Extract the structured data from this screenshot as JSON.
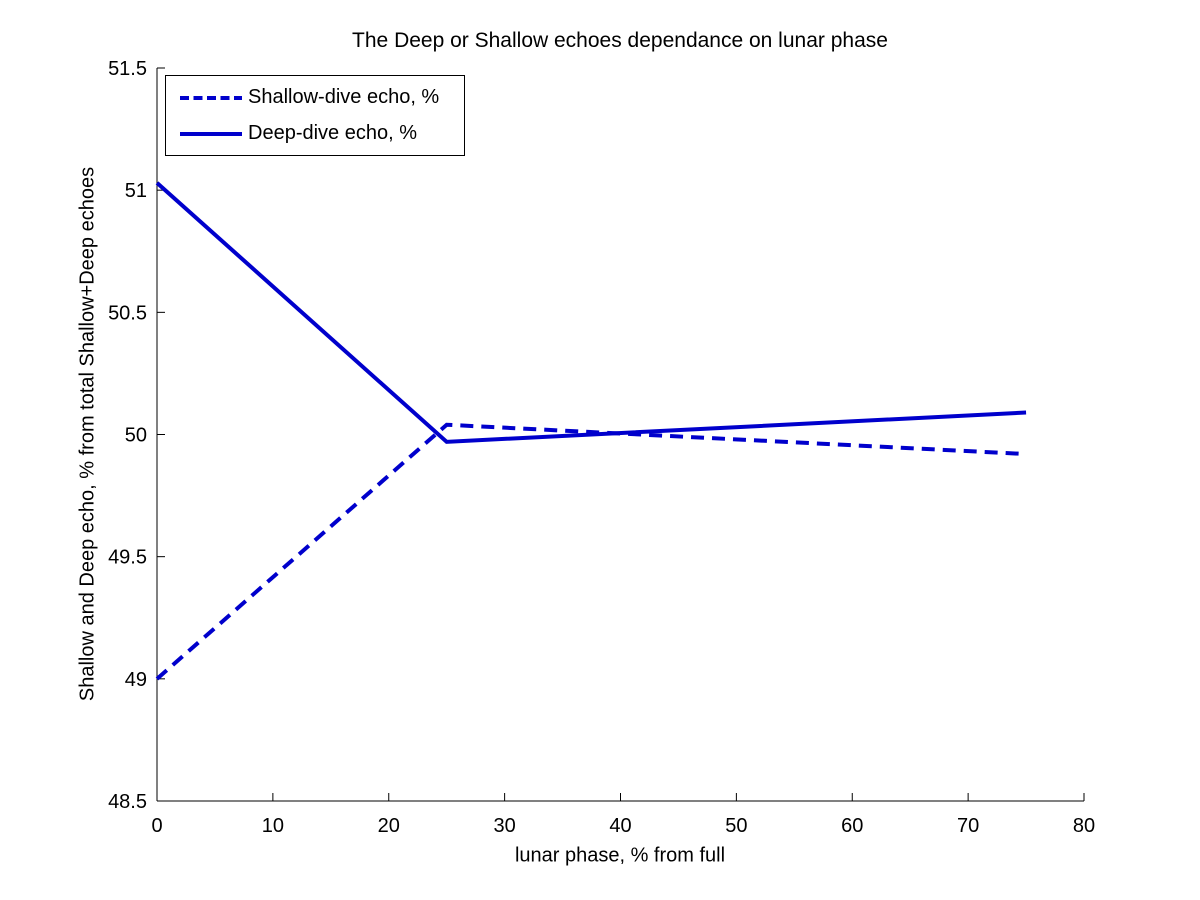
{
  "chart_data": {
    "type": "line",
    "title": "The Deep or Shallow echoes dependance on lunar phase",
    "xlabel": "lunar phase, % from full",
    "ylabel": "Shallow and Deep echo, % from total Shallow+Deep echoes",
    "xlim": [
      0,
      80
    ],
    "ylim": [
      48.5,
      51.5
    ],
    "x_ticks": [
      "0",
      "10",
      "20",
      "30",
      "40",
      "50",
      "60",
      "70",
      "80"
    ],
    "y_ticks": [
      "48.5",
      "49",
      "49.5",
      "50",
      "50.5",
      "51",
      "51.5"
    ],
    "grid": false,
    "box": false,
    "legend_position": "top-left",
    "line_color": "#0000CC",
    "axis_color": "#000000",
    "background_color": "#FFFFFF",
    "x": [
      0,
      25,
      75
    ],
    "series": [
      {
        "name": "Shallow-dive echo, %",
        "style": "dashed",
        "values": [
          49.0,
          50.04,
          49.92
        ]
      },
      {
        "name": "Deep-dive echo, %",
        "style": "solid",
        "values": [
          51.03,
          49.97,
          50.09
        ]
      }
    ]
  }
}
